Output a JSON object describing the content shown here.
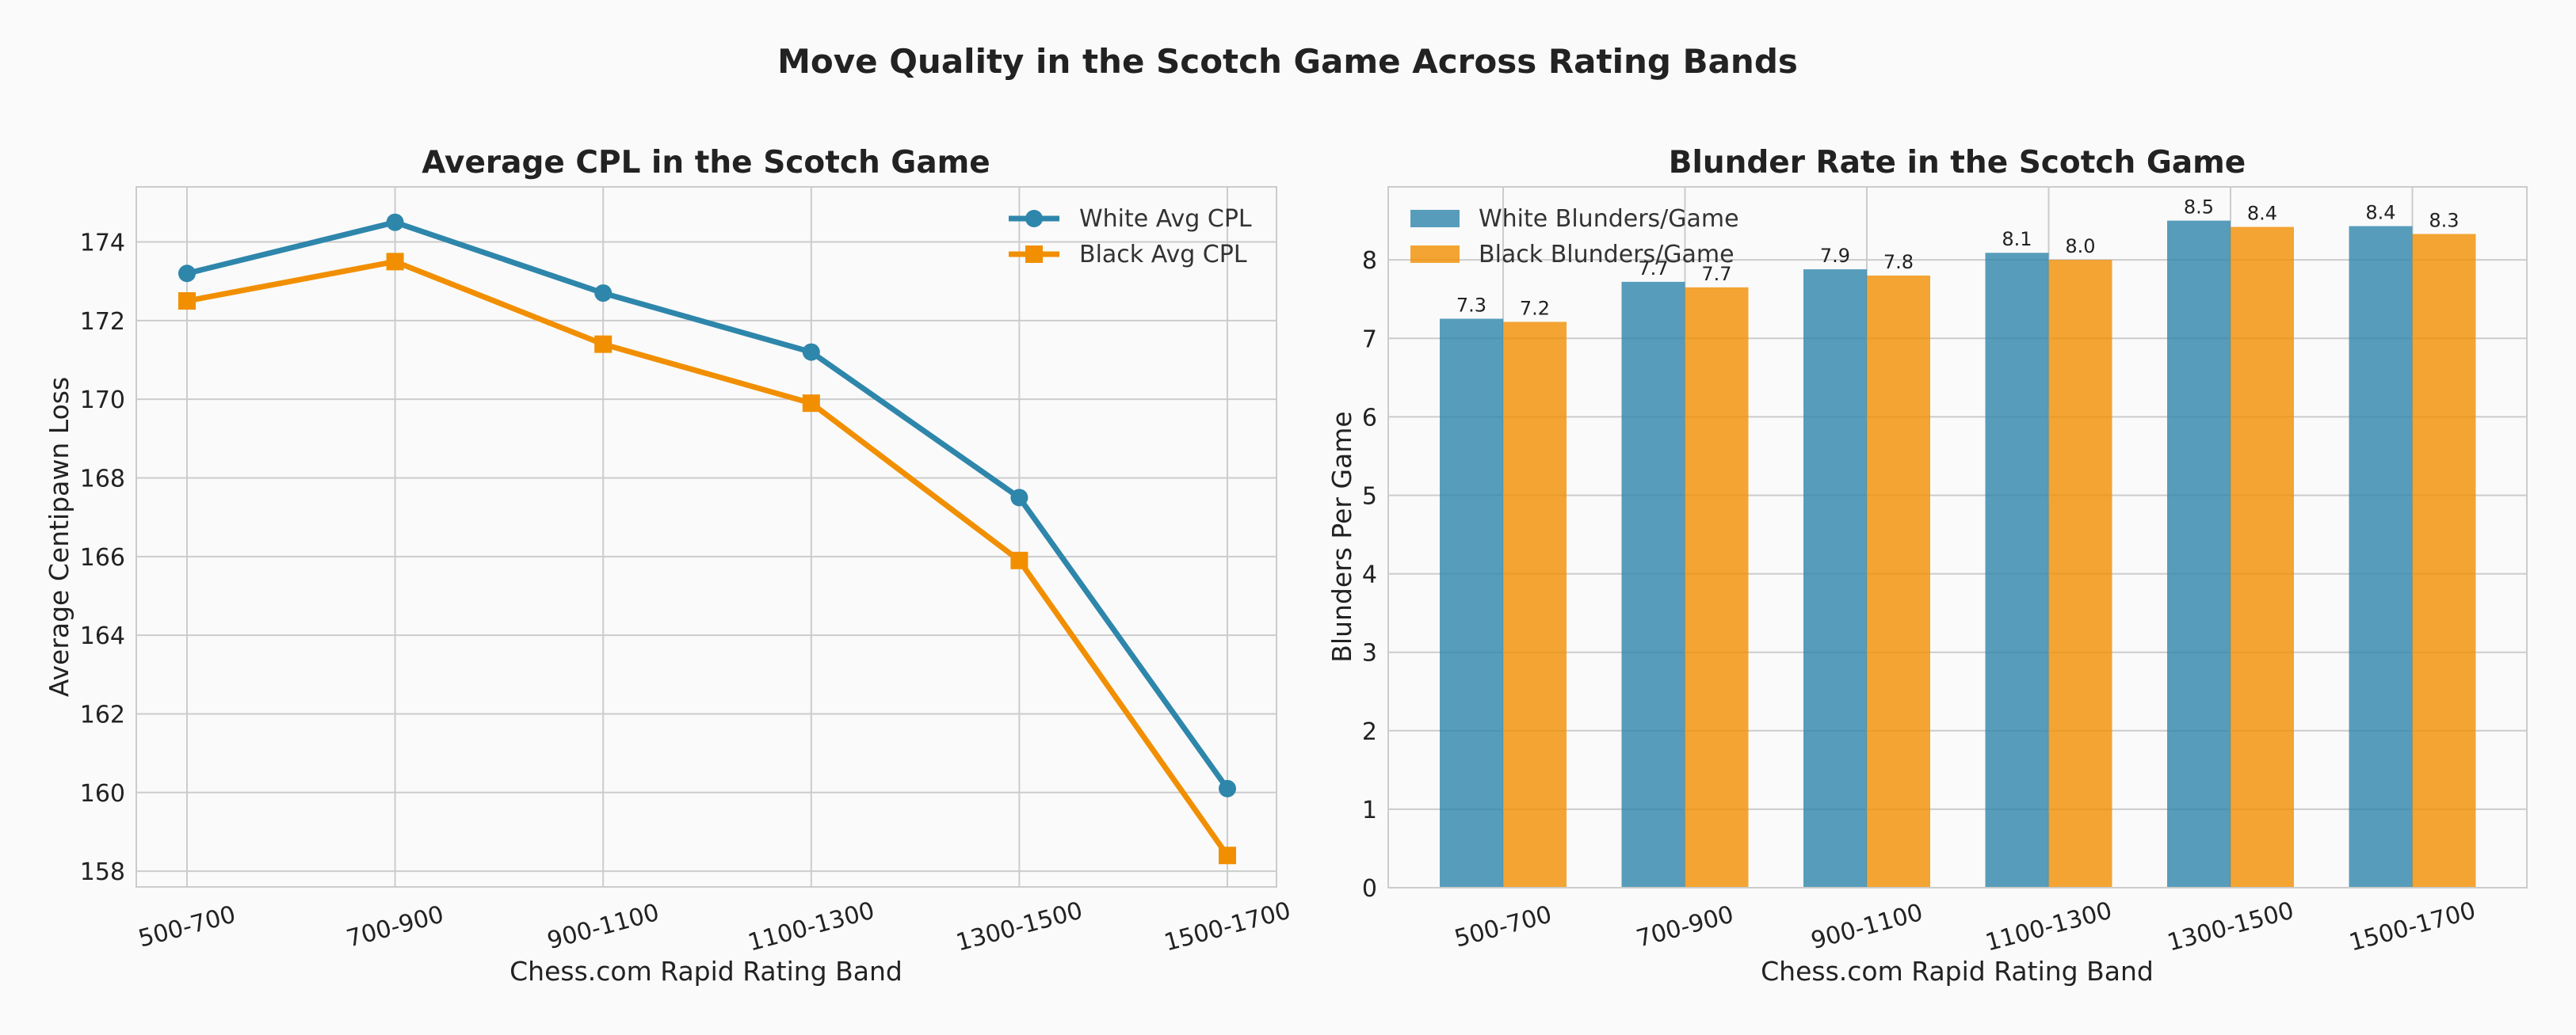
{
  "figure": {
    "suptitle": "Move Quality in the Scotch Game Across Rating Bands",
    "background": "#fafafa"
  },
  "chart_data": [
    {
      "type": "line",
      "title": "Average CPL in the Scotch Game",
      "xlabel": "Chess.com Rapid Rating Band",
      "ylabel": "Average Centipawn Loss",
      "categories": [
        "500-700",
        "700-900",
        "900-1100",
        "1100-1300",
        "1300-1500",
        "1500-1700"
      ],
      "ylim": [
        157.6,
        175.4
      ],
      "yticks": [
        158,
        160,
        162,
        164,
        166,
        168,
        170,
        172,
        174
      ],
      "grid": true,
      "legend_position": "upper right",
      "series": [
        {
          "name": "White Avg CPL",
          "values": [
            173.2,
            174.5,
            172.7,
            171.2,
            167.5,
            160.1
          ],
          "color": "#2e86ab",
          "marker": "circle"
        },
        {
          "name": "Black Avg CPL",
          "values": [
            172.5,
            173.5,
            171.4,
            169.9,
            165.9,
            158.4
          ],
          "color": "#f18f01",
          "marker": "square"
        }
      ]
    },
    {
      "type": "bar",
      "title": "Blunder Rate in the Scotch Game",
      "xlabel": "Chess.com Rapid Rating Band",
      "ylabel": "Blunders Per Game",
      "categories": [
        "500-700",
        "700-900",
        "900-1100",
        "1100-1300",
        "1300-1500",
        "1500-1700"
      ],
      "ylim": [
        0,
        8.93
      ],
      "yticks": [
        0,
        1,
        2,
        3,
        4,
        5,
        6,
        7,
        8
      ],
      "grid": true,
      "legend_position": "upper left",
      "series": [
        {
          "name": "White Blunders/Game",
          "values": [
            7.25,
            7.72,
            7.88,
            8.09,
            8.5,
            8.43
          ],
          "labels": [
            "7.3",
            "7.7",
            "7.9",
            "8.1",
            "8.5",
            "8.4"
          ],
          "color": "#2e86ab"
        },
        {
          "name": "Black Blunders/Game",
          "values": [
            7.21,
            7.65,
            7.8,
            8.0,
            8.42,
            8.33
          ],
          "labels": [
            "7.2",
            "7.7",
            "7.8",
            "8.0",
            "8.4",
            "8.3"
          ],
          "color": "#f18f01"
        }
      ]
    }
  ]
}
